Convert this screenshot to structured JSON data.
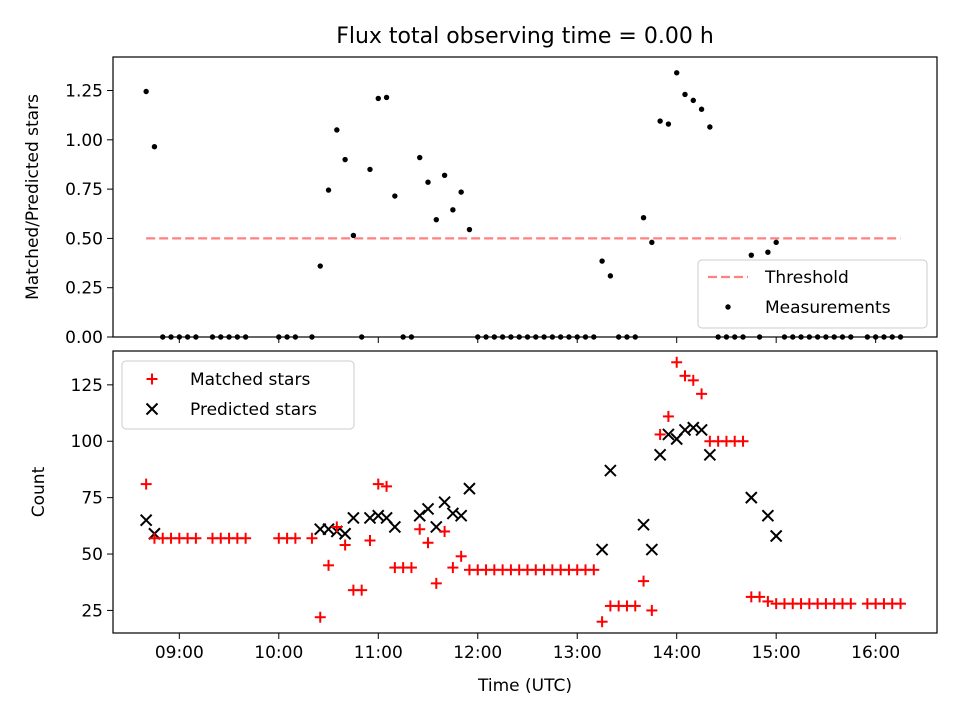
{
  "title": "Flux total observing time = 0.00 h",
  "chart_data": [
    {
      "type": "scatter",
      "ylabel": "Matched/Predicted stars",
      "ylim": [
        0,
        1.42
      ],
      "yticks": [
        0,
        0.25,
        0.5,
        0.75,
        1.0,
        1.25
      ],
      "ytick_labels": [
        "0.00",
        "0.25",
        "0.50",
        "0.75",
        "1.00",
        "1.25"
      ],
      "xlim": [
        "08:20",
        "16:37"
      ],
      "legend": {
        "placement": "lower-right",
        "entries": [
          "Threshold",
          "Measurements"
        ]
      },
      "threshold": {
        "name": "Threshold",
        "value": 0.5,
        "x_start": "08:40",
        "x_end": "16:15",
        "color": "#ff8080",
        "style": "dashed"
      },
      "measurements": {
        "name": "Measurements",
        "color": "#000000",
        "points": [
          [
            "08:40",
            1.245
          ],
          [
            "08:45",
            0.965
          ],
          [
            "08:50",
            0
          ],
          [
            "08:55",
            0
          ],
          [
            "09:00",
            0
          ],
          [
            "09:05",
            0
          ],
          [
            "09:10",
            0
          ],
          [
            "09:20",
            0
          ],
          [
            "09:25",
            0
          ],
          [
            "09:30",
            0
          ],
          [
            "09:35",
            0
          ],
          [
            "09:40",
            0
          ],
          [
            "10:00",
            0
          ],
          [
            "10:05",
            0
          ],
          [
            "10:10",
            0
          ],
          [
            "10:20",
            0
          ],
          [
            "10:25",
            0.36
          ],
          [
            "10:30",
            0.745
          ],
          [
            "10:35",
            1.05
          ],
          [
            "10:40",
            0.9
          ],
          [
            "10:45",
            0.515
          ],
          [
            "10:50",
            0
          ],
          [
            "10:55",
            0.85
          ],
          [
            "11:00",
            1.21
          ],
          [
            "11:05",
            1.215
          ],
          [
            "11:10",
            0.715
          ],
          [
            "11:15",
            0
          ],
          [
            "11:20",
            0
          ],
          [
            "11:25",
            0.91
          ],
          [
            "11:30",
            0.785
          ],
          [
            "11:35",
            0.595
          ],
          [
            "11:40",
            0.82
          ],
          [
            "11:45",
            0.645
          ],
          [
            "11:50",
            0.735
          ],
          [
            "11:55",
            0.545
          ],
          [
            "12:00",
            0
          ],
          [
            "12:05",
            0
          ],
          [
            "12:10",
            0
          ],
          [
            "12:15",
            0
          ],
          [
            "12:20",
            0
          ],
          [
            "12:25",
            0
          ],
          [
            "12:30",
            0
          ],
          [
            "12:35",
            0
          ],
          [
            "12:40",
            0
          ],
          [
            "12:45",
            0
          ],
          [
            "12:50",
            0
          ],
          [
            "12:55",
            0
          ],
          [
            "13:00",
            0
          ],
          [
            "13:05",
            0
          ],
          [
            "13:10",
            0
          ],
          [
            "13:15",
            0.385
          ],
          [
            "13:20",
            0.31
          ],
          [
            "13:25",
            0
          ],
          [
            "13:30",
            0
          ],
          [
            "13:35",
            0
          ],
          [
            "13:40",
            0.605
          ],
          [
            "13:45",
            0.48
          ],
          [
            "13:50",
            1.095
          ],
          [
            "13:55",
            1.08
          ],
          [
            "14:00",
            1.34
          ],
          [
            "14:05",
            1.23
          ],
          [
            "14:10",
            1.2
          ],
          [
            "14:15",
            1.155
          ],
          [
            "14:20",
            1.065
          ],
          [
            "14:25",
            0
          ],
          [
            "14:30",
            0
          ],
          [
            "14:35",
            0
          ],
          [
            "14:40",
            0
          ],
          [
            "14:45",
            0.415
          ],
          [
            "14:50",
            0
          ],
          [
            "14:55",
            0.43
          ],
          [
            "15:00",
            0.48
          ],
          [
            "15:05",
            0
          ],
          [
            "15:10",
            0
          ],
          [
            "15:15",
            0
          ],
          [
            "15:20",
            0
          ],
          [
            "15:25",
            0
          ],
          [
            "15:30",
            0
          ],
          [
            "15:35",
            0
          ],
          [
            "15:40",
            0
          ],
          [
            "15:45",
            0
          ],
          [
            "15:55",
            0
          ],
          [
            "16:00",
            0
          ],
          [
            "16:05",
            0
          ],
          [
            "16:10",
            0
          ],
          [
            "16:15",
            0
          ]
        ]
      }
    },
    {
      "type": "scatter",
      "xlabel": "Time (UTC)",
      "ylabel": "Count",
      "ylim": [
        15,
        140
      ],
      "yticks": [
        25,
        50,
        75,
        100,
        125
      ],
      "ytick_labels": [
        "25",
        "50",
        "75",
        "100",
        "125"
      ],
      "xlim": [
        "08:20",
        "16:37"
      ],
      "xticks": [
        "09:00",
        "10:00",
        "11:00",
        "12:00",
        "13:00",
        "14:00",
        "15:00",
        "16:00"
      ],
      "legend": {
        "placement": "upper-left",
        "entries": [
          "Matched stars",
          "Predicted stars"
        ]
      },
      "series": [
        {
          "name": "Matched stars",
          "marker": "+",
          "color": "#ff0000",
          "points": [
            [
              "08:40",
              81
            ],
            [
              "08:45",
              57
            ],
            [
              "08:50",
              57
            ],
            [
              "08:55",
              57
            ],
            [
              "09:00",
              57
            ],
            [
              "09:05",
              57
            ],
            [
              "09:10",
              57
            ],
            [
              "09:20",
              57
            ],
            [
              "09:25",
              57
            ],
            [
              "09:30",
              57
            ],
            [
              "09:35",
              57
            ],
            [
              "09:40",
              57
            ],
            [
              "10:00",
              57
            ],
            [
              "10:05",
              57
            ],
            [
              "10:10",
              57
            ],
            [
              "10:20",
              57
            ],
            [
              "10:25",
              22
            ],
            [
              "10:30",
              45
            ],
            [
              "10:35",
              62
            ],
            [
              "10:40",
              54
            ],
            [
              "10:45",
              34
            ],
            [
              "10:50",
              34
            ],
            [
              "10:55",
              56
            ],
            [
              "11:00",
              81
            ],
            [
              "11:05",
              80
            ],
            [
              "11:10",
              44
            ],
            [
              "11:15",
              44
            ],
            [
              "11:20",
              44
            ],
            [
              "11:25",
              61
            ],
            [
              "11:30",
              55
            ],
            [
              "11:35",
              37
            ],
            [
              "11:40",
              60
            ],
            [
              "11:45",
              44
            ],
            [
              "11:50",
              49
            ],
            [
              "11:55",
              43
            ],
            [
              "12:00",
              43
            ],
            [
              "12:05",
              43
            ],
            [
              "12:10",
              43
            ],
            [
              "12:15",
              43
            ],
            [
              "12:20",
              43
            ],
            [
              "12:25",
              43
            ],
            [
              "12:30",
              43
            ],
            [
              "12:35",
              43
            ],
            [
              "12:40",
              43
            ],
            [
              "12:45",
              43
            ],
            [
              "12:50",
              43
            ],
            [
              "12:55",
              43
            ],
            [
              "13:00",
              43
            ],
            [
              "13:05",
              43
            ],
            [
              "13:10",
              43
            ],
            [
              "13:15",
              20
            ],
            [
              "13:20",
              27
            ],
            [
              "13:25",
              27
            ],
            [
              "13:30",
              27
            ],
            [
              "13:35",
              27
            ],
            [
              "13:40",
              38
            ],
            [
              "13:45",
              25
            ],
            [
              "13:50",
              103
            ],
            [
              "13:55",
              111
            ],
            [
              "14:00",
              135
            ],
            [
              "14:05",
              129
            ],
            [
              "14:10",
              127
            ],
            [
              "14:15",
              121
            ],
            [
              "14:20",
              100
            ],
            [
              "14:25",
              100
            ],
            [
              "14:30",
              100
            ],
            [
              "14:35",
              100
            ],
            [
              "14:40",
              100
            ],
            [
              "14:45",
              31
            ],
            [
              "14:50",
              31
            ],
            [
              "14:55",
              29
            ],
            [
              "15:00",
              28
            ],
            [
              "15:05",
              28
            ],
            [
              "15:10",
              28
            ],
            [
              "15:15",
              28
            ],
            [
              "15:20",
              28
            ],
            [
              "15:25",
              28
            ],
            [
              "15:30",
              28
            ],
            [
              "15:35",
              28
            ],
            [
              "15:40",
              28
            ],
            [
              "15:45",
              28
            ],
            [
              "15:55",
              28
            ],
            [
              "16:00",
              28
            ],
            [
              "16:05",
              28
            ],
            [
              "16:10",
              28
            ],
            [
              "16:15",
              28
            ]
          ]
        },
        {
          "name": "Predicted stars",
          "marker": "x",
          "color": "#000000",
          "points": [
            [
              "08:40",
              65
            ],
            [
              "08:45",
              59
            ],
            [
              "10:25",
              61
            ],
            [
              "10:30",
              61
            ],
            [
              "10:35",
              60
            ],
            [
              "10:40",
              59
            ],
            [
              "10:45",
              66
            ],
            [
              "10:55",
              66
            ],
            [
              "11:00",
              67
            ],
            [
              "11:05",
              66
            ],
            [
              "11:10",
              62
            ],
            [
              "11:25",
              67
            ],
            [
              "11:30",
              70
            ],
            [
              "11:35",
              62
            ],
            [
              "11:40",
              73
            ],
            [
              "11:45",
              68
            ],
            [
              "11:50",
              67
            ],
            [
              "11:55",
              79
            ],
            [
              "13:15",
              52
            ],
            [
              "13:20",
              87
            ],
            [
              "13:40",
              63
            ],
            [
              "13:45",
              52
            ],
            [
              "13:50",
              94
            ],
            [
              "13:55",
              103
            ],
            [
              "14:00",
              101
            ],
            [
              "14:05",
              105
            ],
            [
              "14:10",
              106
            ],
            [
              "14:15",
              105
            ],
            [
              "14:20",
              94
            ],
            [
              "14:45",
              75
            ],
            [
              "14:55",
              67
            ],
            [
              "15:00",
              58
            ]
          ]
        }
      ]
    }
  ]
}
